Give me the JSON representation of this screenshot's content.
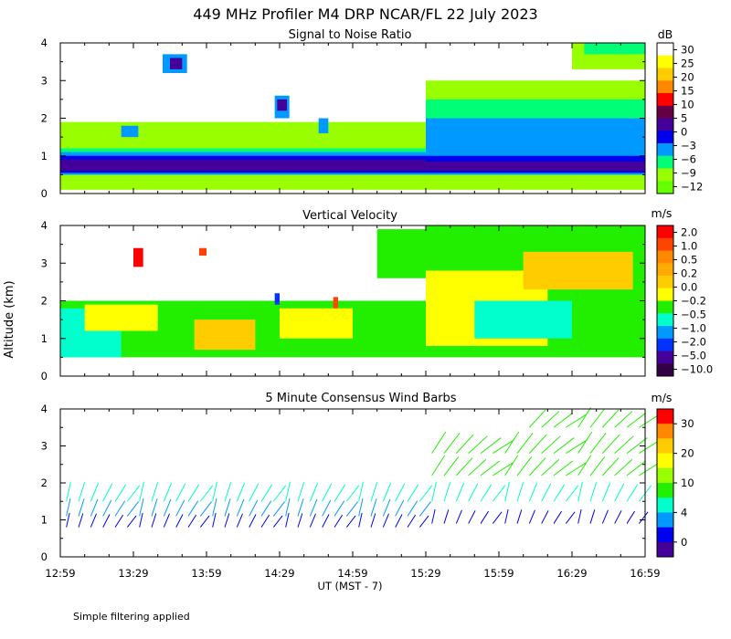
{
  "chart_data": {
    "type": "heatmap",
    "title": "449 MHz Profiler M4 DRP NCAR/FL 22 July 2023",
    "ylabel": "Altitude (km)",
    "xlabel": "UT  (MST - 7)",
    "footnote": "Simple filtering applied",
    "xticks": [
      "12:59",
      "13:29",
      "13:59",
      "14:29",
      "14:59",
      "15:29",
      "15:59",
      "16:29",
      "16:59"
    ],
    "x_range_minutes": [
      0,
      240
    ],
    "ylim": [
      0,
      4
    ],
    "yticks": [
      "0",
      "1",
      "2",
      "3",
      "4"
    ],
    "panels": [
      {
        "title": "Signal to Noise Ratio",
        "units": "dB",
        "colorbar_labels": [
          "30",
          "25",
          "20",
          "15",
          "10",
          "5",
          "0",
          "−3",
          "−6",
          "−9",
          "−12"
        ],
        "colorbar_colors": [
          "#ffffff",
          "#ffff00",
          "#ffcc00",
          "#ff8800",
          "#ff0000",
          "#660044",
          "#440099",
          "#0000ee",
          "#0099ff",
          "#00ff77",
          "#99ff00",
          "#66ff00"
        ],
        "cells": [
          {
            "t0": 0,
            "t1": 240,
            "z0": 0.1,
            "z1": 0.3,
            "color": "#99ff00"
          },
          {
            "t0": 0,
            "t1": 150,
            "z0": 0.3,
            "z1": 1.9,
            "color": "#99ff00"
          },
          {
            "t0": 0,
            "t1": 150,
            "z0": 0.5,
            "z1": 1.2,
            "color": "#00ff77"
          },
          {
            "t0": 0,
            "t1": 150,
            "z0": 0.5,
            "z1": 1.1,
            "color": "#0099ff"
          },
          {
            "t0": 0,
            "t1": 150,
            "z0": 0.55,
            "z1": 1.0,
            "color": "#0000ee"
          },
          {
            "t0": 0,
            "t1": 150,
            "z0": 0.6,
            "z1": 0.9,
            "color": "#440099"
          },
          {
            "t0": 25,
            "t1": 32,
            "z0": 1.5,
            "z1": 1.8,
            "color": "#0099ff"
          },
          {
            "t0": 42,
            "t1": 52,
            "z0": 3.2,
            "z1": 3.7,
            "color": "#0099ff"
          },
          {
            "t0": 45,
            "t1": 50,
            "z0": 3.3,
            "z1": 3.6,
            "color": "#440099"
          },
          {
            "t0": 88,
            "t1": 94,
            "z0": 2.0,
            "z1": 2.6,
            "color": "#0099ff"
          },
          {
            "t0": 89,
            "t1": 93,
            "z0": 2.2,
            "z1": 2.5,
            "color": "#440099"
          },
          {
            "t0": 106,
            "t1": 110,
            "z0": 1.6,
            "z1": 2.0,
            "color": "#0099ff"
          },
          {
            "t0": 150,
            "t1": 240,
            "z0": 0.3,
            "z1": 3.0,
            "color": "#99ff00"
          },
          {
            "t0": 150,
            "t1": 240,
            "z0": 0.5,
            "z1": 2.5,
            "color": "#00ff77"
          },
          {
            "t0": 150,
            "t1": 240,
            "z0": 0.5,
            "z1": 2.0,
            "color": "#0099ff"
          },
          {
            "t0": 150,
            "t1": 240,
            "z0": 0.55,
            "z1": 1.0,
            "color": "#0000ee"
          },
          {
            "t0": 150,
            "t1": 240,
            "z0": 0.6,
            "z1": 0.85,
            "color": "#440099"
          },
          {
            "t0": 210,
            "t1": 240,
            "z0": 3.3,
            "z1": 4.0,
            "color": "#99ff00"
          },
          {
            "t0": 215,
            "t1": 240,
            "z0": 3.7,
            "z1": 4.0,
            "color": "#00ff77"
          }
        ]
      },
      {
        "title": "Vertical Velocity",
        "units": "m/s",
        "colorbar_labels": [
          "2.0",
          "1.0",
          "0.5",
          "0.2",
          "0.0",
          "−0.2",
          "−0.5",
          "−1.0",
          "−2.0",
          "−5.0",
          "−10.0"
        ],
        "colorbar_colors": [
          "#ff0000",
          "#ff4400",
          "#ff8800",
          "#ffaa00",
          "#ffcc00",
          "#ffff00",
          "#22ee00",
          "#00ffcc",
          "#0099ff",
          "#0033ff",
          "#440099",
          "#330044"
        ],
        "cells": [
          {
            "t0": 0,
            "t1": 150,
            "z0": 0.5,
            "z1": 2.0,
            "color": "#22ee00"
          },
          {
            "t0": 0,
            "t1": 25,
            "z0": 0.5,
            "z1": 1.8,
            "color": "#00ffcc"
          },
          {
            "t0": 10,
            "t1": 40,
            "z0": 1.2,
            "z1": 1.9,
            "color": "#ffff00"
          },
          {
            "t0": 55,
            "t1": 80,
            "z0": 0.7,
            "z1": 1.5,
            "color": "#ffcc00"
          },
          {
            "t0": 90,
            "t1": 120,
            "z0": 1.0,
            "z1": 1.8,
            "color": "#ffff00"
          },
          {
            "t0": 30,
            "t1": 34,
            "z0": 2.9,
            "z1": 3.4,
            "color": "#ff0000"
          },
          {
            "t0": 57,
            "t1": 60,
            "z0": 3.2,
            "z1": 3.4,
            "color": "#ff4400"
          },
          {
            "t0": 88,
            "t1": 90,
            "z0": 1.9,
            "z1": 2.2,
            "color": "#0033ff"
          },
          {
            "t0": 112,
            "t1": 114,
            "z0": 1.8,
            "z1": 2.1,
            "color": "#ff4400"
          },
          {
            "t0": 150,
            "t1": 240,
            "z0": 0.5,
            "z1": 4.0,
            "color": "#22ee00"
          },
          {
            "t0": 150,
            "t1": 200,
            "z0": 0.8,
            "z1": 2.8,
            "color": "#ffff00"
          },
          {
            "t0": 170,
            "t1": 210,
            "z0": 1.0,
            "z1": 2.0,
            "color": "#00ffcc"
          },
          {
            "t0": 190,
            "t1": 235,
            "z0": 2.3,
            "z1": 3.3,
            "color": "#ffcc00"
          },
          {
            "t0": 130,
            "t1": 150,
            "z0": 2.6,
            "z1": 3.9,
            "color": "#22ee00"
          }
        ]
      },
      {
        "title": "5 Minute Consensus Wind Barbs",
        "units": "m/s",
        "colorbar_labels": [
          "30",
          "20",
          "10",
          "4",
          "0"
        ],
        "colorbar_colors": [
          "#ff0000",
          "#ff8800",
          "#ffcc00",
          "#ffff00",
          "#99ff00",
          "#22ee00",
          "#00ffcc",
          "#0099ff",
          "#0000ee",
          "#440099"
        ],
        "barb_levels": [
          {
            "t0": 0,
            "t1": 150,
            "z": 0.8,
            "speed": 3
          },
          {
            "t0": 0,
            "t1": 150,
            "z": 1.1,
            "speed": 5
          },
          {
            "t0": 0,
            "t1": 150,
            "z": 1.5,
            "speed": 6
          },
          {
            "t0": 150,
            "t1": 240,
            "z": 0.9,
            "speed": 3
          },
          {
            "t0": 150,
            "t1": 240,
            "z": 1.5,
            "speed": 6
          },
          {
            "t0": 150,
            "t1": 240,
            "z": 2.2,
            "speed": 8
          },
          {
            "t0": 150,
            "t1": 240,
            "z": 2.8,
            "speed": 9
          },
          {
            "t0": 190,
            "t1": 240,
            "z": 3.5,
            "speed": 8
          }
        ]
      }
    ]
  }
}
